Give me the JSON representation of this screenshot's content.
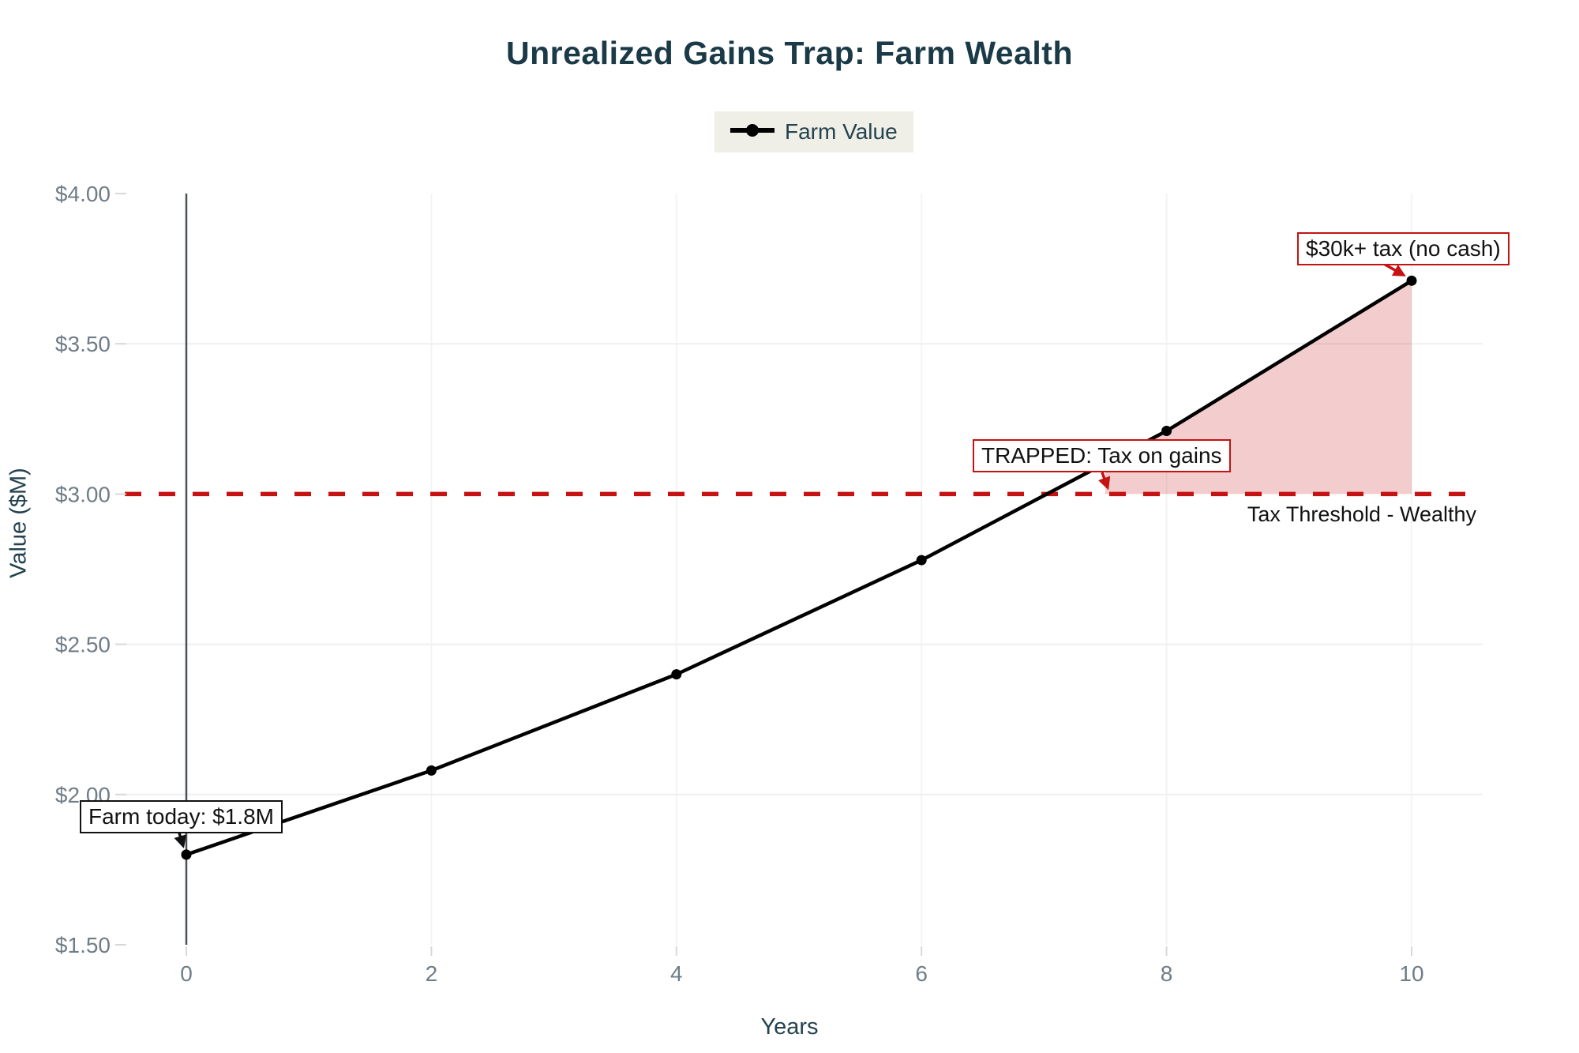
{
  "title": "Unrealized Gains Trap: Farm Wealth",
  "legend": {
    "items": [
      {
        "label": "Farm Value",
        "marker": "line-dot",
        "color": "#000000"
      }
    ]
  },
  "axes": {
    "x_title": "Years",
    "y_title": "Value ($M)"
  },
  "chart_data": {
    "type": "line",
    "title": "Unrealized Gains Trap: Farm Wealth",
    "xlabel": "Years",
    "ylabel": "Value ($M)",
    "xlim": [
      -0.5,
      10.6
    ],
    "ylim": [
      1.5,
      4.0
    ],
    "grid": true,
    "legend_position": "top-center",
    "x": [
      0,
      2,
      4,
      6,
      8,
      10
    ],
    "series": [
      {
        "name": "Farm Value",
        "values": [
          1.8,
          2.08,
          2.4,
          2.78,
          3.21,
          3.71
        ],
        "color": "#000000",
        "marker": "dot"
      }
    ],
    "x_ticks": {
      "values": [
        0,
        2,
        4,
        6,
        8,
        10
      ],
      "labels": [
        "0",
        "2",
        "4",
        "6",
        "8",
        "10"
      ]
    },
    "y_ticks": {
      "values": [
        4.0,
        3.5,
        3.0,
        2.5,
        2.0,
        1.5
      ],
      "labels": [
        "$4.00",
        "$3.50",
        "$3.00",
        "$2.50",
        "$2.00",
        "$1.50"
      ]
    },
    "h_gridlines": [
      3.5,
      2.5,
      2.0
    ],
    "v_gridlines": [
      2,
      4,
      6,
      8,
      10
    ],
    "threshold": {
      "value": 3.0,
      "label": "Tax Threshold - Wealthy",
      "color": "#c51212",
      "style": "dashed"
    },
    "shaded_region": {
      "description": "unrealized gains taxed above wealth threshold",
      "baseline": 3.0,
      "upper_points": [
        [
          7.5,
          3.1
        ],
        [
          8,
          3.21
        ],
        [
          10,
          3.71
        ]
      ],
      "fill": "rgba(197,18,18,0.21)"
    },
    "annotations": [
      {
        "id": "farm_today",
        "text": "Farm today: $1.8M",
        "target": [
          0,
          1.8
        ],
        "box_color": "#111111",
        "arrow_color": "#111111"
      },
      {
        "id": "trapped",
        "text": "TRAPPED: Tax on gains",
        "target": [
          7.5,
          3.0
        ],
        "box_color": "#c51212",
        "arrow_color": "#c51212"
      },
      {
        "id": "tax_30k",
        "text": "$30k+ tax (no cash)",
        "target": [
          10,
          3.71
        ],
        "box_color": "#c51212",
        "arrow_color": "#c51212"
      }
    ]
  },
  "colors": {
    "title": "#1b3a47",
    "axis_titles": "#24424e",
    "tick_labels": "#6f7d87",
    "series_line": "#000000",
    "threshold_red": "#c51212",
    "shaded_fill": "rgba(197,18,18,0.21)",
    "legend_background": "#efeee7",
    "background": "#ffffff",
    "zero_axis_line": "#4d5257",
    "gridline": "#f0f0f0"
  }
}
